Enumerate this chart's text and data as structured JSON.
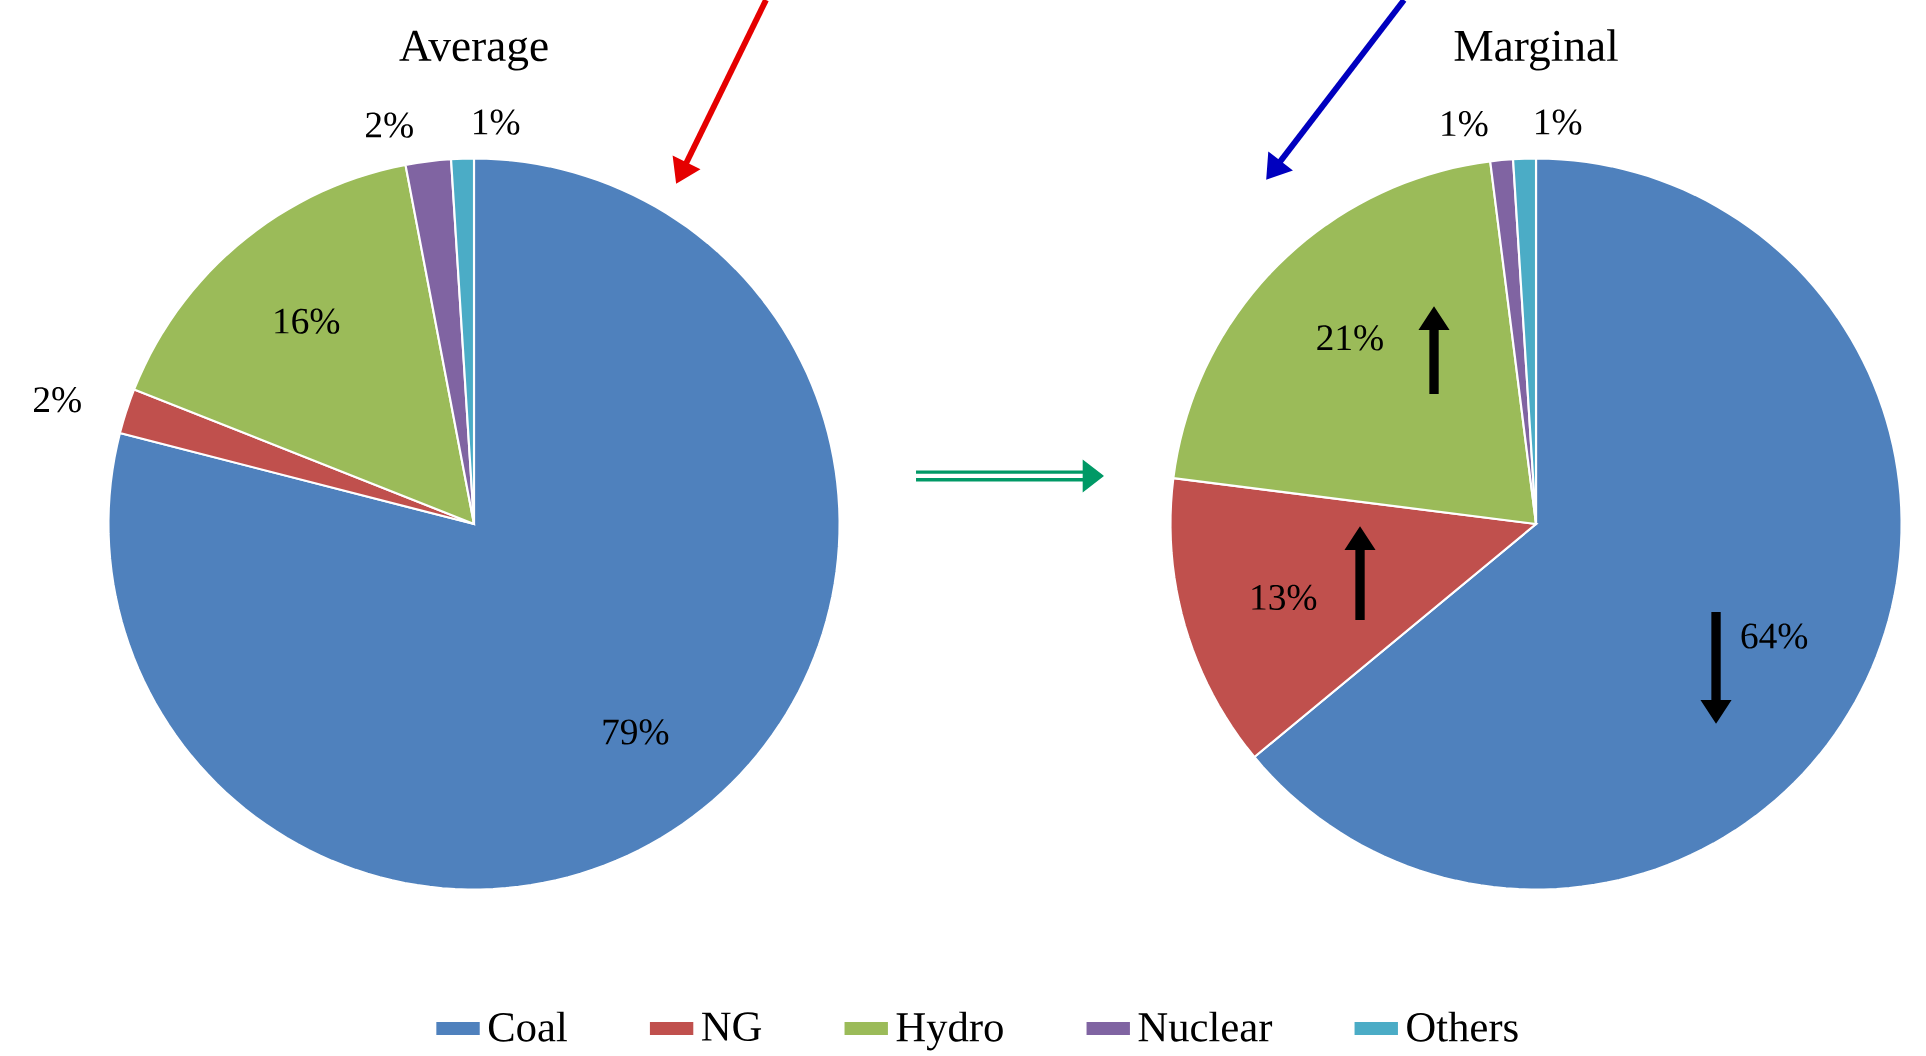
{
  "chart_data": [
    {
      "type": "pie",
      "title": "Average",
      "categories": [
        "Coal",
        "NG",
        "Hydro",
        "Nuclear",
        "Others"
      ],
      "values": [
        79,
        2,
        16,
        2,
        1
      ],
      "value_labels": [
        "79%",
        "2%",
        "16%",
        "2%",
        "1%"
      ],
      "colors": [
        "#4f81bd",
        "#c0504d",
        "#9bbb59",
        "#8064a2",
        "#4bacc6"
      ],
      "legend": "bottom"
    },
    {
      "type": "pie",
      "title": "Marginal",
      "categories": [
        null,
        null,
        null,
        null,
        null
      ],
      "values": [
        64,
        13,
        21,
        1,
        1
      ],
      "value_labels": [
        "64%",
        "13%",
        "21%",
        "1%",
        "1%"
      ],
      "colors": [
        "#4f81bd",
        "#c0504d",
        "#9bbb59",
        "#8064a2",
        "#4bacc6"
      ]
    }
  ]
}
